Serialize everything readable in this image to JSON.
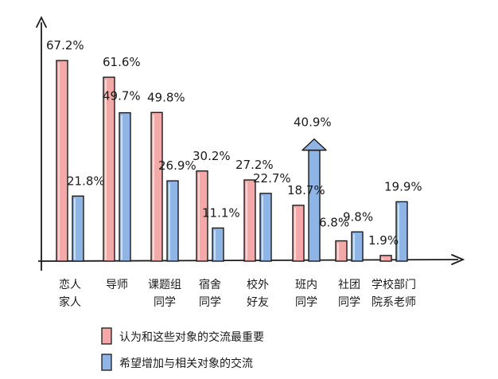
{
  "chart_data": {
    "type": "bar",
    "categories": [
      [
        "恋人",
        "家人"
      ],
      [
        "导师",
        ""
      ],
      [
        "课题组",
        "同学"
      ],
      [
        "宿舍",
        "同学"
      ],
      [
        "校外",
        "好友"
      ],
      [
        "班内",
        "同学"
      ],
      [
        "社团",
        "同学"
      ],
      [
        "学校部门",
        "院系老师"
      ]
    ],
    "series": [
      {
        "name": "认为和这些对象的交流最重要",
        "color": "#f4a8a8",
        "values": [
          67.2,
          61.6,
          49.8,
          30.2,
          27.2,
          18.7,
          6.8,
          1.9
        ],
        "labels": [
          "67.2%",
          "61.6%",
          "49.8%",
          "30.2%",
          "27.2%",
          "18.7%",
          "6.8%",
          "1.9%"
        ]
      },
      {
        "name": "希望增加与相关对象的交流",
        "color": "#8fb5e6",
        "values": [
          21.8,
          49.7,
          26.9,
          11.1,
          22.7,
          40.9,
          9.8,
          19.9
        ],
        "labels": [
          "21.8%",
          "49.7%",
          "26.9%",
          "11.1%",
          "22.7%",
          "40.9%",
          "9.8%",
          "19.9%"
        ]
      }
    ],
    "highlight_arrow": {
      "series": 1,
      "category": 5
    },
    "ylim": [
      0,
      80
    ],
    "axis_arrows": true,
    "legend": {
      "position": "bottom-center"
    }
  }
}
